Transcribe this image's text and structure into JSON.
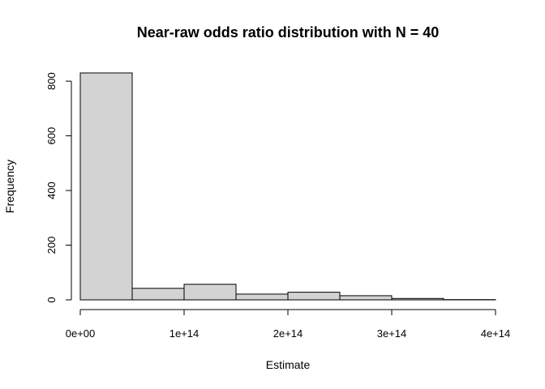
{
  "chart_data": {
    "type": "bar",
    "title": "Near-raw odds ratio distribution with N = 40",
    "xlabel": "Estimate",
    "ylabel": "Frequency",
    "bins": [
      {
        "from": 0,
        "to": 50000000000000.0,
        "count": 830
      },
      {
        "from": 50000000000000.0,
        "to": 100000000000000.0,
        "count": 42
      },
      {
        "from": 100000000000000.0,
        "to": 150000000000000.0,
        "count": 57
      },
      {
        "from": 150000000000000.0,
        "to": 200000000000000.0,
        "count": 21
      },
      {
        "from": 200000000000000.0,
        "to": 250000000000000.0,
        "count": 28
      },
      {
        "from": 250000000000000.0,
        "to": 300000000000000.0,
        "count": 15
      },
      {
        "from": 300000000000000.0,
        "to": 350000000000000.0,
        "count": 5
      },
      {
        "from": 350000000000000.0,
        "to": 400000000000000.0,
        "count": 1
      }
    ],
    "x_ticks": [
      0,
      100000000000000.0,
      200000000000000.0,
      300000000000000.0,
      400000000000000.0
    ],
    "x_tick_labels": [
      "0e+00",
      "1e+14",
      "2e+14",
      "3e+14",
      "4e+14"
    ],
    "y_ticks": [
      0,
      200,
      400,
      600,
      800
    ],
    "y_tick_labels": [
      "0",
      "200",
      "400",
      "600",
      "800"
    ],
    "xlim": [
      0,
      400000000000000.0
    ],
    "ylim": [
      0,
      830
    ],
    "grid": false,
    "bar_color": "#d3d3d3",
    "edge_color": "#000000"
  }
}
